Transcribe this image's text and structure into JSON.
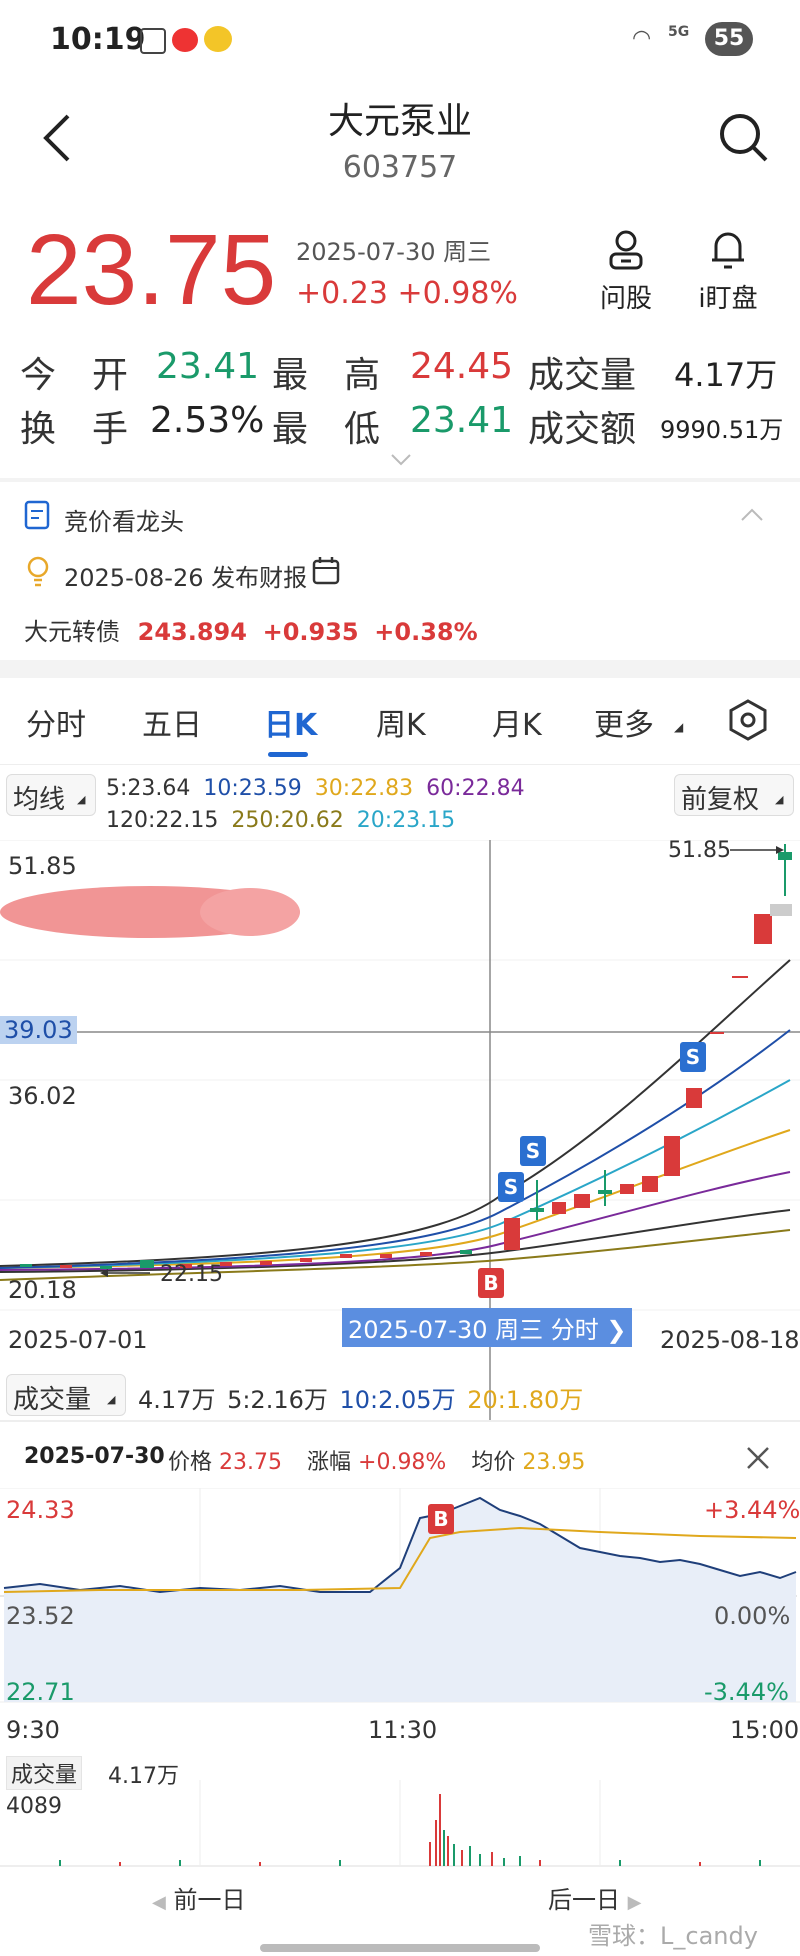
{
  "status_bar": {
    "time": "10:19",
    "battery": "55",
    "network": "5G"
  },
  "header": {
    "title": "大元泵业",
    "code": "603757"
  },
  "quote": {
    "price": "23.75",
    "datetime": "2025-07-30 周三",
    "change": "+0.23",
    "change_pct": "+0.98%",
    "ask_label": "问股",
    "watch_label": "i盯盘",
    "rows": [
      [
        {
          "label": "今　开",
          "value": "23.41",
          "color": "green"
        },
        {
          "label": "最　高",
          "value": "24.45",
          "color": "red"
        },
        {
          "label": "成交量",
          "value": "4.17万",
          "color": "black"
        }
      ],
      [
        {
          "label": "换　手",
          "value": "2.53%",
          "color": "black"
        },
        {
          "label": "最　低",
          "value": "23.41",
          "color": "green"
        },
        {
          "label": "成交额",
          "value": "9990.51万",
          "color": "black"
        }
      ]
    ]
  },
  "info": {
    "auction_label": "竞价看龙头",
    "report_date": "2025-08-26",
    "report_label": "发布财报",
    "bond_name": "大元转债",
    "bond_price": "243.894",
    "bond_change": "+0.935",
    "bond_pct": "+0.38%"
  },
  "tabs": [
    "分时",
    "五日",
    "日K",
    "周K",
    "月K",
    "更多"
  ],
  "active_tab": 2,
  "kline": {
    "ma_selector": "均线",
    "adjust_selector": "前复权",
    "ma_row1": [
      {
        "t": "5:23.64",
        "c": "#333333"
      },
      {
        "t": "10:23.59",
        "c": "#1f4fa8"
      },
      {
        "t": "30:22.83",
        "c": "#e0a81c"
      },
      {
        "t": "60:22.84",
        "c": "#7a2a9a"
      }
    ],
    "ma_row2": [
      {
        "t": "120:22.15",
        "c": "#333333"
      },
      {
        "t": "250:20.62",
        "c": "#8a7a1a"
      },
      {
        "t": "20:23.15",
        "c": "#2aa6c8"
      }
    ],
    "y_high": "51.85",
    "y_cross": "39.03",
    "y_mid": "36.02",
    "y_low": "20.18",
    "max_tag": "51.85",
    "min_tag": "22.15",
    "date_start": "2025-07-01",
    "date_end": "2025-08-18",
    "cross_label": "2025-07-30 周三 分时 ❯",
    "buy_marker": "B",
    "sell_marker": "S",
    "vol_selector": "成交量",
    "vol_values": [
      {
        "t": "4.17万",
        "c": "#333333"
      },
      {
        "t": "5:2.16万",
        "c": "#333333"
      },
      {
        "t": "10:2.05万",
        "c": "#1f4fa8"
      },
      {
        "t": "20:1.80万",
        "c": "#e0a81c"
      }
    ]
  },
  "intraday": {
    "date": "2025-07-30",
    "price_label": "价格",
    "price": "23.75",
    "chg_label": "涨幅",
    "chg": "+0.98%",
    "avg_label": "均价",
    "avg": "23.95",
    "y_top": "24.33",
    "y_mid": "23.52",
    "y_bot": "22.71",
    "pct_top": "+3.44%",
    "pct_mid": "0.00%",
    "pct_bot": "-3.44%",
    "t_start": "9:30",
    "t_mid": "11:30",
    "t_end": "15:00",
    "vol_label": "成交量",
    "vol": "4.17万",
    "vol_max": "4089",
    "buy_marker": "B"
  },
  "footer": {
    "prev": "前一日",
    "next": "后一日",
    "watermark": "雪球：L_candy"
  },
  "colors": {
    "up": "#d93a3a",
    "down": "#1a9a6a",
    "accent": "#1f66d1",
    "cross": "#5b8ee0"
  }
}
